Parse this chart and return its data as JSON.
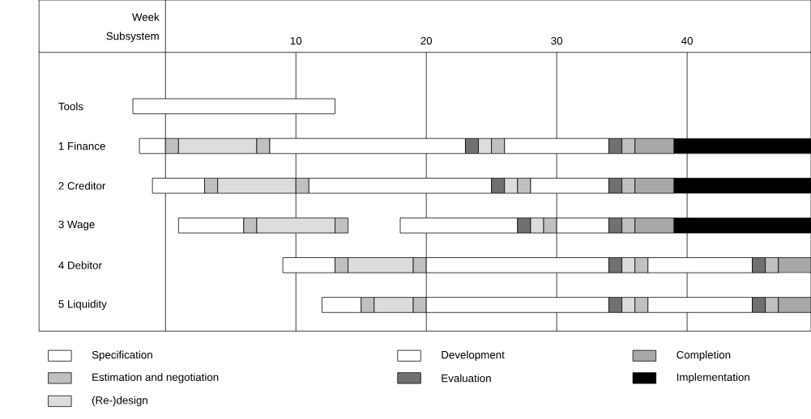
{
  "chart_data": {
    "type": "bar",
    "orientation": "horizontal",
    "xlabel": "Week",
    "ylabel": "Subsystem",
    "categories": [
      "Tools",
      "1 Finance",
      "2 Creditor",
      "3 Wage",
      "4 Debitor",
      "5 Liquidity"
    ],
    "xlim": [
      -9.7,
      49.5
    ],
    "xticks": [
      {
        "value": 0,
        "label": null
      },
      10,
      20,
      30,
      40
    ],
    "grid": "x",
    "legend": "bottom",
    "series": [
      {
        "name": "Specification",
        "color": "#ffffff",
        "base": [
          -2.5,
          -2,
          -1,
          1,
          9,
          12
        ],
        "values": [
          15.5,
          2,
          4,
          5,
          4,
          3
        ]
      },
      {
        "name": "Estimation and negotiation",
        "color": "#c0c0c0",
        "base": [
          null,
          0,
          3,
          6,
          13,
          15
        ],
        "values": [
          null,
          1,
          1,
          1,
          1,
          1
        ]
      },
      {
        "name": "(Re-)design",
        "color": "#dcdcdc",
        "base": [
          null,
          1,
          4,
          7,
          14,
          16
        ],
        "values": [
          null,
          6,
          6,
          6,
          5,
          3
        ]
      },
      {
        "color": "#c0c0c0",
        "base": [
          null,
          7,
          10,
          13,
          19,
          19
        ],
        "values": [
          null,
          1,
          1,
          1,
          1,
          1
        ]
      },
      {
        "name": "Development",
        "color": "#ffffff",
        "base": [
          null,
          8,
          11,
          18,
          20,
          20
        ],
        "values": [
          null,
          15,
          14,
          9,
          14,
          14
        ]
      },
      {
        "name": "Evaluation",
        "color": "#707070",
        "base": [
          null,
          23,
          25,
          27,
          34,
          34
        ],
        "values": [
          null,
          1,
          1,
          1,
          1,
          1
        ]
      },
      {
        "color": "#dcdcdc",
        "base": [
          null,
          24,
          26,
          28,
          35,
          35
        ],
        "values": [
          null,
          1,
          1,
          1,
          1,
          1
        ]
      },
      {
        "color": "#c0c0c0",
        "base": [
          null,
          25,
          27,
          29,
          36,
          36
        ],
        "values": [
          null,
          1,
          1,
          1,
          1,
          1
        ]
      },
      {
        "color": "#ffffff",
        "base": [
          null,
          26,
          28,
          30,
          37,
          37
        ],
        "values": [
          null,
          8,
          6,
          4,
          8,
          8
        ]
      },
      {
        "color": "#707070",
        "base": [
          null,
          34,
          34,
          34,
          45,
          45
        ],
        "values": [
          null,
          1,
          1,
          1,
          1,
          1
        ]
      },
      {
        "color": "#c0c0c0",
        "base": [
          null,
          35,
          35,
          35,
          46,
          46
        ],
        "values": [
          null,
          1,
          1,
          1,
          1,
          1
        ]
      },
      {
        "name": "Completion",
        "color": "#a8a8a8",
        "base": [
          null,
          36,
          36,
          36,
          47,
          47
        ],
        "values": [
          null,
          3,
          3,
          3,
          2.5,
          2.5
        ]
      },
      {
        "name": "Implementation",
        "color": "#000000",
        "base": [
          null,
          39,
          39,
          39,
          null,
          null
        ],
        "values": [
          null,
          10.5,
          10.5,
          10.5,
          null,
          null
        ]
      }
    ]
  }
}
